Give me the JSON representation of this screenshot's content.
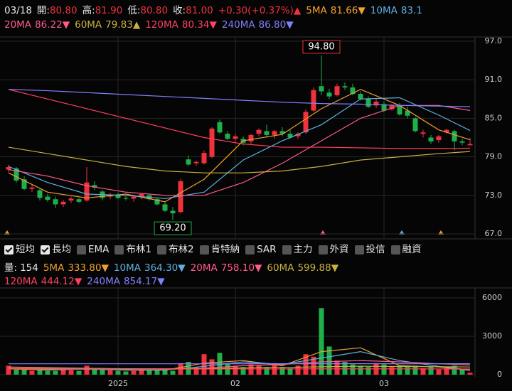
{
  "toolbar": {
    "options": [
      {
        "label": "短均",
        "checked": true
      },
      {
        "label": "長均",
        "checked": true
      },
      {
        "label": "EMA",
        "checked": false
      },
      {
        "label": "布林1",
        "checked": false
      },
      {
        "label": "布林2",
        "checked": false
      },
      {
        "label": "肯特納",
        "checked": false
      },
      {
        "label": "SAR",
        "checked": false
      },
      {
        "label": "主力",
        "checked": false
      },
      {
        "label": "外資",
        "checked": false
      },
      {
        "label": "投信",
        "checked": false
      },
      {
        "label": "融資",
        "checked": false
      }
    ]
  },
  "chart_data": [
    {
      "type": "candlestick",
      "date": "03/18",
      "quote": [
        {
          "label": "開:",
          "value": "80.80"
        },
        {
          "label": "高:",
          "value": "81.90"
        },
        {
          "label": "低:",
          "value": "80.80"
        },
        {
          "label": "收:",
          "value": "81.00"
        }
      ],
      "change": "+0.30(+0.37%)▲",
      "categories": [
        null,
        null,
        null,
        null,
        null,
        null,
        null,
        null,
        null,
        null,
        null,
        null,
        null,
        null,
        "2025",
        null,
        null,
        null,
        null,
        null,
        null,
        null,
        null,
        null,
        null,
        null,
        null,
        null,
        null,
        "02",
        null,
        null,
        null,
        null,
        null,
        null,
        null,
        null,
        null,
        null,
        null,
        null,
        null,
        null,
        null,
        null,
        null,
        null,
        "03",
        null,
        null,
        null,
        null,
        null,
        null,
        null,
        null,
        null,
        null,
        null
      ],
      "open": [
        77.0,
        77.2,
        75.5,
        74.0,
        73.8,
        72.8,
        72.4,
        71.6,
        72.2,
        72.4,
        72.2,
        74.6,
        73.6,
        72.8,
        73.0,
        72.6,
        72.5,
        72.8,
        73.0,
        72.4,
        71.6,
        70.6,
        70.4,
        78.6,
        78.0,
        78.0,
        79.0,
        84.4,
        82.6,
        81.8,
        81.8,
        81.4,
        82.6,
        83.0,
        82.4,
        83.0,
        82.6,
        82.2,
        82.8,
        86.2,
        90.0,
        89.0,
        88.6,
        90.0,
        89.8,
        88.8,
        88.0,
        87.0,
        87.2,
        86.4,
        87.0,
        86.2,
        85.0,
        82.6,
        82.0,
        81.6,
        82.8,
        83.0,
        81.4,
        80.8
      ],
      "high": [
        77.8,
        77.4,
        76.0,
        74.6,
        74.0,
        73.2,
        72.8,
        72.3,
        72.8,
        72.6,
        77.4,
        75.2,
        73.8,
        73.4,
        73.4,
        72.9,
        73.0,
        73.4,
        73.2,
        72.6,
        71.9,
        71.2,
        75.6,
        79.2,
        78.4,
        80.0,
        83.6,
        84.8,
        83.0,
        82.6,
        82.2,
        82.6,
        83.4,
        84.0,
        83.2,
        83.6,
        83.2,
        82.8,
        86.4,
        89.8,
        94.8,
        89.6,
        90.4,
        90.6,
        90.4,
        89.2,
        88.4,
        88.0,
        87.6,
        87.2,
        87.4,
        86.8,
        85.2,
        83.2,
        82.4,
        82.4,
        83.4,
        83.2,
        81.8,
        81.9
      ],
      "low": [
        76.6,
        75.0,
        73.8,
        73.5,
        72.2,
        72.0,
        71.0,
        71.2,
        71.8,
        71.8,
        72.0,
        73.8,
        72.2,
        72.4,
        72.4,
        72.2,
        72.0,
        72.4,
        72.2,
        71.4,
        70.4,
        69.2,
        70.2,
        77.6,
        77.6,
        77.8,
        78.8,
        82.6,
        81.6,
        81.2,
        80.8,
        81.0,
        82.2,
        82.0,
        81.8,
        82.2,
        81.8,
        81.8,
        82.6,
        86.0,
        88.6,
        88.0,
        88.4,
        89.4,
        88.6,
        87.8,
        86.6,
        86.6,
        86.0,
        86.2,
        85.4,
        85.0,
        82.8,
        82.0,
        81.0,
        81.2,
        82.6,
        80.0,
        80.8,
        80.8
      ],
      "close": [
        77.4,
        75.3,
        74.0,
        74.2,
        72.6,
        72.3,
        71.6,
        72.0,
        72.5,
        72.0,
        75.0,
        74.2,
        72.6,
        73.1,
        72.6,
        72.5,
        72.8,
        73.2,
        72.4,
        71.6,
        70.6,
        70.2,
        75.2,
        77.8,
        78.2,
        79.6,
        83.4,
        82.8,
        81.8,
        82.2,
        81.2,
        82.4,
        83.2,
        82.4,
        83.0,
        82.6,
        82.0,
        82.6,
        86.0,
        89.4,
        89.2,
        88.4,
        90.0,
        89.8,
        88.8,
        88.0,
        86.8,
        87.6,
        86.2,
        87.0,
        85.6,
        85.4,
        83.0,
        82.8,
        81.4,
        82.2,
        83.2,
        81.4,
        81.2,
        81.0
      ],
      "up_color": "#f0323c",
      "down_color": "#1fb04a",
      "ylim": [
        67,
        97
      ],
      "yticks": [
        {
          "value": 67,
          "label": "67.0"
        },
        {
          "value": 73,
          "label": "73.0"
        },
        {
          "value": 79,
          "label": "79.0"
        },
        {
          "value": 85,
          "label": "85.0"
        },
        {
          "value": 91,
          "label": "91.0"
        },
        {
          "value": 97,
          "label": "97.0"
        }
      ],
      "max_label": "94.80",
      "min_label": "69.20",
      "series": [
        {
          "name": "5MA",
          "color": "#f0a030",
          "last_label": "81.66",
          "trend": "▼",
          "x": [
            0,
            5,
            10,
            15,
            20,
            25,
            30,
            35,
            40,
            45,
            50,
            55,
            59
          ],
          "values": [
            76.5,
            73.5,
            72.6,
            73.2,
            72.0,
            75.5,
            81.5,
            82.5,
            86.5,
            89.5,
            87.0,
            83.2,
            81.66
          ]
        },
        {
          "name": "10MA",
          "color": "#5fb0e0",
          "last_label": "83.1",
          "x": [
            0,
            5,
            10,
            15,
            20,
            25,
            30,
            35,
            40,
            45,
            50,
            55,
            59
          ],
          "values": [
            77.5,
            75.0,
            73.2,
            73.0,
            72.5,
            73.5,
            78.5,
            81.5,
            84.0,
            88.0,
            88.2,
            85.5,
            83.1
          ]
        },
        {
          "name": "20MA",
          "color": "#ff5c8a",
          "last_label": "86.22",
          "trend": "▼",
          "x": [
            0,
            5,
            10,
            15,
            20,
            25,
            30,
            35,
            40,
            45,
            50,
            55,
            59
          ],
          "values": [
            77.0,
            76.0,
            74.5,
            73.5,
            73.0,
            73.0,
            75.0,
            78.0,
            81.5,
            85.0,
            87.0,
            87.0,
            86.22
          ]
        },
        {
          "name": "60MA",
          "color": "#c8b040",
          "last_label": "79.83",
          "trend": "▲",
          "x": [
            0,
            5,
            10,
            15,
            20,
            25,
            30,
            35,
            40,
            45,
            50,
            55,
            59
          ],
          "values": [
            80.5,
            79.5,
            78.5,
            77.5,
            76.8,
            76.5,
            76.5,
            76.8,
            77.5,
            78.5,
            79.0,
            79.5,
            79.83
          ]
        },
        {
          "name": "120MA",
          "color": "#ff4060",
          "last_label": "80.34",
          "trend": "▼",
          "x": [
            0,
            5,
            10,
            15,
            20,
            25,
            30,
            35,
            40,
            45,
            50,
            55,
            59
          ],
          "values": [
            89.5,
            88.0,
            86.5,
            85.0,
            83.5,
            82.0,
            81.0,
            80.5,
            80.5,
            80.4,
            80.3,
            80.3,
            80.34
          ]
        },
        {
          "name": "240MA",
          "color": "#8080ff",
          "last_label": "86.80",
          "trend": "▼",
          "x": [
            0,
            5,
            10,
            15,
            20,
            25,
            30,
            35,
            40,
            45,
            50,
            55,
            59
          ],
          "values": [
            89.5,
            89.3,
            89.0,
            88.7,
            88.4,
            88.1,
            87.8,
            87.5,
            87.3,
            87.2,
            87.0,
            86.9,
            86.8
          ]
        }
      ]
    },
    {
      "type": "bar",
      "label": "量:",
      "last_label": "154",
      "values": [
        700,
        400,
        500,
        300,
        350,
        300,
        300,
        400,
        350,
        300,
        700,
        500,
        400,
        350,
        300,
        250,
        300,
        400,
        350,
        400,
        450,
        300,
        900,
        1000,
        600,
        1600,
        1200,
        1700,
        900,
        700,
        600,
        800,
        700,
        600,
        900,
        600,
        500,
        700,
        1600,
        1400,
        5200,
        2200,
        1100,
        1000,
        800,
        700,
        600,
        900,
        800,
        600,
        700,
        600,
        700,
        500,
        600,
        400,
        500,
        700,
        400,
        154
      ],
      "ylim": [
        0,
        6600
      ],
      "yticks": [
        0,
        3000,
        6000
      ],
      "series": [
        {
          "name": "5MA",
          "color": "#f0a030",
          "last_label": "333.80",
          "trend": "▼",
          "x": [
            0,
            5,
            10,
            15,
            20,
            25,
            30,
            35,
            40,
            45,
            50,
            55,
            59
          ],
          "values": [
            450,
            350,
            450,
            350,
            350,
            900,
            1100,
            700,
            1800,
            2100,
            700,
            600,
            333.8
          ]
        },
        {
          "name": "10MA",
          "color": "#5fb0e0",
          "last_label": "364.30",
          "trend": "▼",
          "x": [
            0,
            5,
            10,
            15,
            20,
            25,
            30,
            35,
            40,
            45,
            50,
            55,
            59
          ],
          "values": [
            500,
            400,
            420,
            380,
            360,
            650,
            1000,
            800,
            1300,
            1800,
            1100,
            650,
            364.3
          ]
        },
        {
          "name": "20MA",
          "color": "#ff5c8a",
          "last_label": "758.10",
          "trend": "▼",
          "x": [
            0,
            5,
            10,
            15,
            20,
            25,
            30,
            35,
            40,
            45,
            50,
            55,
            59
          ],
          "values": [
            600,
            550,
            500,
            450,
            420,
            500,
            700,
            800,
            1000,
            1100,
            1000,
            850,
            758.1
          ]
        },
        {
          "name": "60MA",
          "color": "#c8b040",
          "last_label": "599.88",
          "trend": "▼",
          "x": [
            0,
            5,
            10,
            15,
            20,
            25,
            30,
            35,
            40,
            45,
            50,
            55,
            59
          ],
          "values": [
            500,
            500,
            480,
            470,
            460,
            470,
            520,
            560,
            620,
            660,
            640,
            620,
            599.88
          ]
        },
        {
          "name": "120MA",
          "color": "#ff4060",
          "last_label": "444.12",
          "trend": "▼",
          "x": [
            0,
            5,
            10,
            15,
            20,
            25,
            30,
            35,
            40,
            45,
            50,
            55,
            59
          ],
          "values": [
            450,
            450,
            448,
            447,
            446,
            446,
            447,
            448,
            450,
            452,
            450,
            446,
            444.12
          ]
        },
        {
          "name": "240MA",
          "color": "#8080ff",
          "last_label": "854.17",
          "trend": "▼",
          "x": [
            0,
            5,
            10,
            15,
            20,
            25,
            30,
            35,
            40,
            45,
            50,
            55,
            59
          ],
          "values": [
            850,
            850,
            851,
            851,
            852,
            852,
            853,
            853,
            854,
            854,
            854,
            854,
            854.17
          ]
        }
      ]
    }
  ]
}
